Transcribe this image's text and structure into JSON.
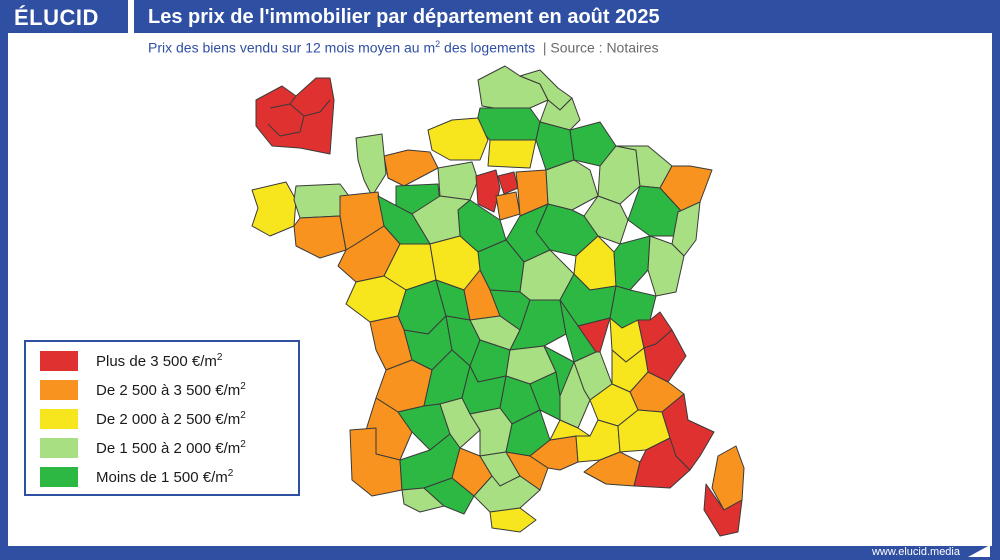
{
  "header": {
    "logo": "ÉLUCID",
    "title": "Les prix de l'immobilier par département en août 2025"
  },
  "subtitle": {
    "main": "Prix des biens vendu sur 12 mois moyen au m",
    "sup": "2",
    "rest": " des logements",
    "separator": "|",
    "source": "Source : Notaires"
  },
  "legend": {
    "items": [
      {
        "label": "Plus de 3 500 €/m",
        "sup": "2",
        "color": "#e03131"
      },
      {
        "label": "De 2 500 à 3 500 €/m",
        "sup": "2",
        "color": "#f7931e"
      },
      {
        "label": "De 2 000 à 2 500 €/m",
        "sup": "2",
        "color": "#f7e51e"
      },
      {
        "label": "De 1 500 à 2 000 €/m",
        "sup": "2",
        "color": "#a8df82"
      },
      {
        "label": "Moins de 1 500 €/m",
        "sup": "2",
        "color": "#2db843"
      }
    ]
  },
  "colors": {
    "brand": "#2f4fa3",
    "red": "#e03131",
    "orange": "#f7931e",
    "yellow": "#f7e51e",
    "lightgreen": "#a8df82",
    "green": "#2db843"
  },
  "footer": {
    "url": "www.elucid.media"
  }
}
